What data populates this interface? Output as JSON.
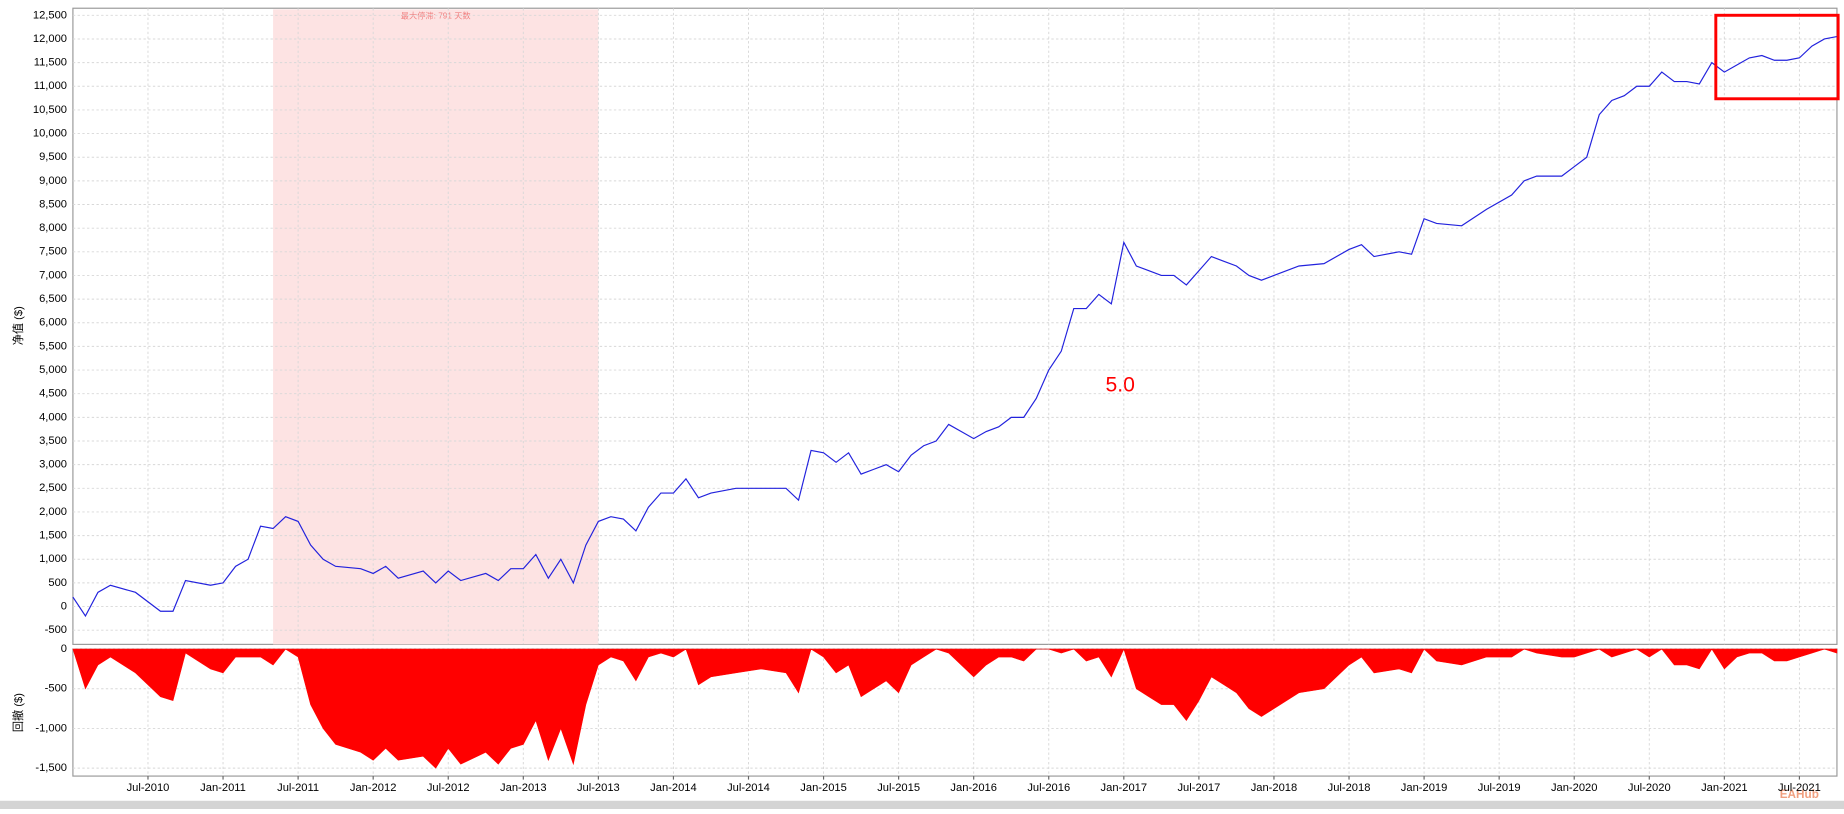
{
  "chart_data": [
    {
      "type": "line",
      "y_label": "净值 ($)",
      "annotation": "最大停滞: 791 天数",
      "highlight_span": [
        "2011-05",
        "2013-07"
      ],
      "note": "5.0",
      "watermark": "EAHub",
      "xlim": [
        "2010-01",
        "2021-10"
      ],
      "ylim": [
        -800,
        12650
      ],
      "grid": true,
      "yticks": [
        {
          "value": -500,
          "label": "-500"
        },
        0,
        500,
        {
          "value": 1000,
          "label": "1,000"
        },
        {
          "value": 1500,
          "label": "1,500"
        },
        {
          "value": 2000,
          "label": "2,000"
        },
        {
          "value": 2500,
          "label": "2,500"
        },
        {
          "value": 3000,
          "label": "3,000"
        },
        {
          "value": 3500,
          "label": "3,500"
        },
        {
          "value": 4000,
          "label": "4,000"
        },
        {
          "value": 4500,
          "label": "4,500"
        },
        {
          "value": 5000,
          "label": "5,000"
        },
        {
          "value": 5500,
          "label": "5,500"
        },
        {
          "value": 6000,
          "label": "6,000"
        },
        {
          "value": 6500,
          "label": "6,500"
        },
        {
          "value": 7000,
          "label": "7,000"
        },
        {
          "value": 7500,
          "label": "7,500"
        },
        {
          "value": 8000,
          "label": "8,000"
        },
        {
          "value": 8500,
          "label": "8,500"
        },
        {
          "value": 9000,
          "label": "9,000"
        },
        {
          "value": 9500,
          "label": "9,500"
        },
        {
          "value": 10000,
          "label": "10,000"
        },
        {
          "value": 10500,
          "label": "10,500"
        },
        {
          "value": 11000,
          "label": "11,000"
        },
        {
          "value": 11500,
          "label": "11,500"
        },
        {
          "value": 12000,
          "label": "12,000"
        },
        {
          "value": 12500,
          "label": "12,500"
        }
      ],
      "x": [
        "2010-01",
        "2010-02",
        "2010-03",
        "2010-04",
        "2010-06",
        "2010-08",
        "2010-09",
        "2010-10",
        "2010-12",
        "2011-01",
        "2011-02",
        "2011-03",
        "2011-04",
        "2011-05",
        "2011-06",
        "2011-07",
        "2011-08",
        "2011-09",
        "2011-10",
        "2011-12",
        "2012-01",
        "2012-02",
        "2012-03",
        "2012-05",
        "2012-06",
        "2012-07",
        "2012-08",
        "2012-10",
        "2012-11",
        "2012-12",
        "2013-01",
        "2013-02",
        "2013-03",
        "2013-04",
        "2013-05",
        "2013-06",
        "2013-07",
        "2013-08",
        "2013-09",
        "2013-10",
        "2013-11",
        "2013-12",
        "2014-01",
        "2014-02",
        "2014-03",
        "2014-04",
        "2014-06",
        "2014-08",
        "2014-10",
        "2014-11",
        "2014-12",
        "2015-01",
        "2015-02",
        "2015-03",
        "2015-04",
        "2015-05",
        "2015-06",
        "2015-07",
        "2015-08",
        "2015-09",
        "2015-10",
        "2015-11",
        "2015-12",
        "2016-01",
        "2016-02",
        "2016-03",
        "2016-04",
        "2016-05",
        "2016-06",
        "2016-07",
        "2016-08",
        "2016-09",
        "2016-10",
        "2016-11",
        "2016-12",
        "2017-01",
        "2017-02",
        "2017-03",
        "2017-04",
        "2017-05",
        "2017-06",
        "2017-07",
        "2017-08",
        "2017-09",
        "2017-10",
        "2017-11",
        "2017-12",
        "2018-01",
        "2018-03",
        "2018-05",
        "2018-07",
        "2018-08",
        "2018-09",
        "2018-11",
        "2018-12",
        "2019-01",
        "2019-02",
        "2019-04",
        "2019-06",
        "2019-08",
        "2019-09",
        "2019-10",
        "2019-12",
        "2020-01",
        "2020-02",
        "2020-03",
        "2020-04",
        "2020-05",
        "2020-06",
        "2020-07",
        "2020-08",
        "2020-09",
        "2020-10",
        "2020-11",
        "2020-12",
        "2021-01",
        "2021-02",
        "2021-03",
        "2021-04",
        "2021-05",
        "2021-06",
        "2021-07",
        "2021-08",
        "2021-09",
        "2021-10"
      ],
      "series": [
        {
          "color": "#2222dd",
          "values": [
            200,
            -200,
            300,
            450,
            300,
            -100,
            -100,
            550,
            450,
            500,
            850,
            1000,
            1700,
            1650,
            1900,
            1800,
            1300,
            1000,
            850,
            800,
            700,
            850,
            600,
            750,
            500,
            750,
            550,
            700,
            550,
            800,
            800,
            1100,
            600,
            1000,
            500,
            1300,
            1800,
            1900,
            1850,
            1600,
            2100,
            2400,
            2400,
            2700,
            2300,
            2400,
            2500,
            2500,
            2500,
            2250,
            3300,
            3250,
            3050,
            3250,
            2800,
            2900,
            3000,
            2850,
            3200,
            3400,
            3500,
            3850,
            3700,
            3550,
            3700,
            3800,
            4000,
            4000,
            4400,
            5000,
            5400,
            6300,
            6300,
            6600,
            6400,
            7700,
            7200,
            7100,
            7000,
            7000,
            6800,
            7100,
            7400,
            7300,
            7200,
            7000,
            6900,
            7000,
            7200,
            7250,
            7550,
            7650,
            7400,
            7500,
            7450,
            8200,
            8100,
            8050,
            8400,
            8700,
            9000,
            9100,
            9100,
            9300,
            9500,
            10400,
            10700,
            10800,
            11000,
            11000,
            11300,
            11100,
            11100,
            11050,
            11500,
            11300,
            11450,
            11600,
            11650,
            11550,
            11550,
            11600,
            11850,
            12000,
            12050
          ]
        }
      ]
    },
    {
      "type": "area",
      "y_label": "回撤 ($)",
      "xlim": [
        "2010-01",
        "2021-10"
      ],
      "ylim": [
        -1600,
        0
      ],
      "grid": true,
      "yticks": [
        0,
        -500,
        {
          "value": -1000,
          "label": "-1,000"
        },
        {
          "value": -1500,
          "label": "-1,500"
        }
      ],
      "xticks": [
        {
          "value": "2010-07",
          "label": "Jul-2010"
        },
        {
          "value": "2011-01",
          "label": "Jan-2011"
        },
        {
          "value": "2011-07",
          "label": "Jul-2011"
        },
        {
          "value": "2012-01",
          "label": "Jan-2012"
        },
        {
          "value": "2012-07",
          "label": "Jul-2012"
        },
        {
          "value": "2013-01",
          "label": "Jan-2013"
        },
        {
          "value": "2013-07",
          "label": "Jul-2013"
        },
        {
          "value": "2014-01",
          "label": "Jan-2014"
        },
        {
          "value": "2014-07",
          "label": "Jul-2014"
        },
        {
          "value": "2015-01",
          "label": "Jan-2015"
        },
        {
          "value": "2015-07",
          "label": "Jul-2015"
        },
        {
          "value": "2016-01",
          "label": "Jan-2016"
        },
        {
          "value": "2016-07",
          "label": "Jul-2016"
        },
        {
          "value": "2017-01",
          "label": "Jan-2017"
        },
        {
          "value": "2017-07",
          "label": "Jul-2017"
        },
        {
          "value": "2018-01",
          "label": "Jan-2018"
        },
        {
          "value": "2018-07",
          "label": "Jul-2018"
        },
        {
          "value": "2019-01",
          "label": "Jan-2019"
        },
        {
          "value": "2019-07",
          "label": "Jul-2019"
        },
        {
          "value": "2020-01",
          "label": "Jan-2020"
        },
        {
          "value": "2020-07",
          "label": "Jul-2020"
        },
        {
          "value": "2021-01",
          "label": "Jan-2021"
        },
        {
          "value": "2021-07",
          "label": "Jul-2021"
        }
      ],
      "x": [
        "2010-01",
        "2010-02",
        "2010-03",
        "2010-04",
        "2010-06",
        "2010-08",
        "2010-09",
        "2010-10",
        "2010-12",
        "2011-01",
        "2011-02",
        "2011-03",
        "2011-04",
        "2011-05",
        "2011-06",
        "2011-07",
        "2011-08",
        "2011-09",
        "2011-10",
        "2011-12",
        "2012-01",
        "2012-02",
        "2012-03",
        "2012-05",
        "2012-06",
        "2012-07",
        "2012-08",
        "2012-10",
        "2012-11",
        "2012-12",
        "2013-01",
        "2013-02",
        "2013-03",
        "2013-04",
        "2013-05",
        "2013-06",
        "2013-07",
        "2013-08",
        "2013-09",
        "2013-10",
        "2013-11",
        "2013-12",
        "2014-01",
        "2014-02",
        "2014-03",
        "2014-04",
        "2014-06",
        "2014-08",
        "2014-10",
        "2014-11",
        "2014-12",
        "2015-01",
        "2015-02",
        "2015-03",
        "2015-04",
        "2015-05",
        "2015-06",
        "2015-07",
        "2015-08",
        "2015-09",
        "2015-10",
        "2015-11",
        "2015-12",
        "2016-01",
        "2016-02",
        "2016-03",
        "2016-04",
        "2016-05",
        "2016-06",
        "2016-07",
        "2016-08",
        "2016-09",
        "2016-10",
        "2016-11",
        "2016-12",
        "2017-01",
        "2017-02",
        "2017-03",
        "2017-04",
        "2017-05",
        "2017-06",
        "2017-07",
        "2017-08",
        "2017-09",
        "2017-10",
        "2017-11",
        "2017-12",
        "2018-01",
        "2018-03",
        "2018-05",
        "2018-07",
        "2018-08",
        "2018-09",
        "2018-11",
        "2018-12",
        "2019-01",
        "2019-02",
        "2019-04",
        "2019-06",
        "2019-08",
        "2019-09",
        "2019-10",
        "2019-12",
        "2020-01",
        "2020-02",
        "2020-03",
        "2020-04",
        "2020-05",
        "2020-06",
        "2020-07",
        "2020-08",
        "2020-09",
        "2020-10",
        "2020-11",
        "2020-12",
        "2021-01",
        "2021-02",
        "2021-03",
        "2021-04",
        "2021-05",
        "2021-06",
        "2021-07",
        "2021-08",
        "2021-09",
        "2021-10"
      ],
      "series": [
        {
          "color": "#ff0000",
          "values": [
            0,
            -500,
            -200,
            -100,
            -300,
            -600,
            -650,
            -50,
            -250,
            -300,
            -100,
            -100,
            -100,
            -200,
            0,
            -100,
            -700,
            -1000,
            -1200,
            -1300,
            -1400,
            -1250,
            -1400,
            -1350,
            -1500,
            -1250,
            -1450,
            -1300,
            -1450,
            -1250,
            -1200,
            -900,
            -1400,
            -1000,
            -1450,
            -700,
            -200,
            -100,
            -150,
            -400,
            -100,
            -50,
            -100,
            0,
            -450,
            -350,
            -300,
            -250,
            -300,
            -550,
            0,
            -100,
            -300,
            -200,
            -600,
            -500,
            -400,
            -550,
            -200,
            -100,
            0,
            -50,
            -200,
            -350,
            -200,
            -100,
            -100,
            -150,
            0,
            0,
            -50,
            0,
            -150,
            -100,
            -350,
            0,
            -500,
            -600,
            -700,
            -700,
            -900,
            -650,
            -350,
            -450,
            -550,
            -750,
            -850,
            -750,
            -550,
            -500,
            -200,
            -100,
            -300,
            -250,
            -300,
            0,
            -150,
            -200,
            -100,
            -100,
            0,
            -50,
            -100,
            -100,
            -50,
            0,
            -100,
            -50,
            0,
            -100,
            0,
            -200,
            -200,
            -250,
            0,
            -250,
            -100,
            -50,
            -50,
            -150,
            -150,
            -100,
            -50,
            0,
            -50
          ]
        }
      ]
    }
  ]
}
